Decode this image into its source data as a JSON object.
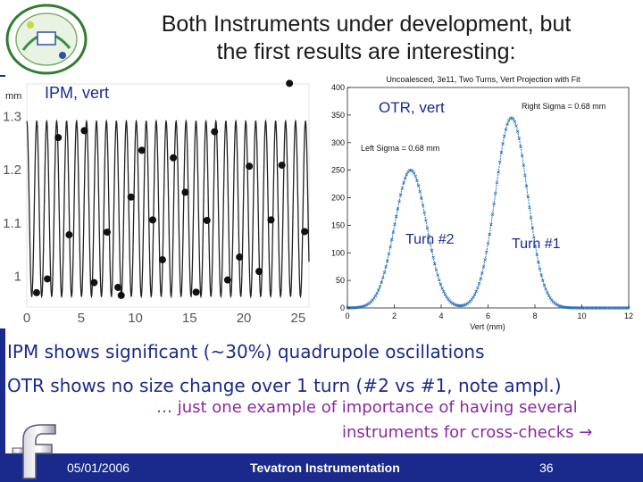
{
  "slide": {
    "title_line1": "Both Instruments under development, but",
    "title_line2": "the first results are interesting:",
    "bullet1": "IPM shows significant (~30%) quadrupole oscillations",
    "bullet2": "OTR shows no size change over 1 turn (#2 vs #1, note ampl.)",
    "note_line1": "… just one example of importance of having several",
    "note_line2": "instruments for cross-checks →",
    "footer_date": "05/01/2006",
    "footer_center": "Tevatron Instrumentation",
    "footer_page": "36",
    "colors": {
      "accent": "#1a2a8c",
      "note": "#8a2aa0",
      "otr_curve": "#2a6fb8"
    }
  },
  "chart_data": [
    {
      "type": "line",
      "label": "IPM, vert",
      "unit_label": "mm",
      "xlim": [
        0,
        26
      ],
      "ylim": [
        0.94,
        1.36
      ],
      "xticks": [
        0,
        5,
        10,
        15,
        20,
        25
      ],
      "yticks": [
        1,
        1.1,
        1.2,
        1.3
      ],
      "ytick_labels": [
        "1",
        "1.1",
        "1.2",
        "1.3"
      ],
      "oscillation": {
        "mean": 1.125,
        "amplitude": 0.165,
        "period": 0.917
      },
      "points": [
        {
          "x": 0.9,
          "y": 0.967
        },
        {
          "x": 1.9,
          "y": 0.993
        },
        {
          "x": 2.9,
          "y": 1.259
        },
        {
          "x": 3.9,
          "y": 1.076
        },
        {
          "x": 5.3,
          "y": 1.272
        },
        {
          "x": 6.2,
          "y": 0.986
        },
        {
          "x": 7.4,
          "y": 1.081
        },
        {
          "x": 8.4,
          "y": 0.977
        },
        {
          "x": 8.7,
          "y": 0.962
        },
        {
          "x": 9.6,
          "y": 1.147
        },
        {
          "x": 10.6,
          "y": 1.235
        },
        {
          "x": 11.6,
          "y": 1.104
        },
        {
          "x": 12.5,
          "y": 1.029
        },
        {
          "x": 13.5,
          "y": 1.221
        },
        {
          "x": 14.6,
          "y": 1.156
        },
        {
          "x": 15.6,
          "y": 0.968
        },
        {
          "x": 16.6,
          "y": 1.103
        },
        {
          "x": 17.3,
          "y": 1.27
        },
        {
          "x": 18.5,
          "y": 0.991
        },
        {
          "x": 19.6,
          "y": 1.034
        },
        {
          "x": 20.5,
          "y": 1.205
        },
        {
          "x": 21.4,
          "y": 1.007
        },
        {
          "x": 22.5,
          "y": 1.104
        },
        {
          "x": 23.5,
          "y": 1.207
        },
        {
          "x": 24.2,
          "y": 1.361
        },
        {
          "x": 25.6,
          "y": 1.082
        }
      ]
    },
    {
      "type": "line",
      "title": "Uncoalesced, 3e11, Two Turns, Vert Projection with Fit",
      "label": "OTR, vert",
      "xlabel": "Vert (mm)",
      "xlim": [
        0,
        12
      ],
      "ylim": [
        0,
        400
      ],
      "xticks": [
        0,
        2,
        4,
        6,
        8,
        10,
        12
      ],
      "yticks": [
        0,
        50,
        100,
        150,
        200,
        250,
        300,
        350,
        400
      ],
      "annotations": {
        "left_sigma": "Left Sigma = 0.68 mm",
        "right_sigma": "Right Sigma = 0.68 mm",
        "turn2": "Turn #2",
        "turn1": "Turn #1"
      },
      "peaks": [
        {
          "name": "Turn #2",
          "center": 2.7,
          "sigma": 0.68,
          "height": 250
        },
        {
          "name": "Turn #1",
          "center": 7.0,
          "sigma": 0.68,
          "height": 345
        }
      ]
    }
  ]
}
